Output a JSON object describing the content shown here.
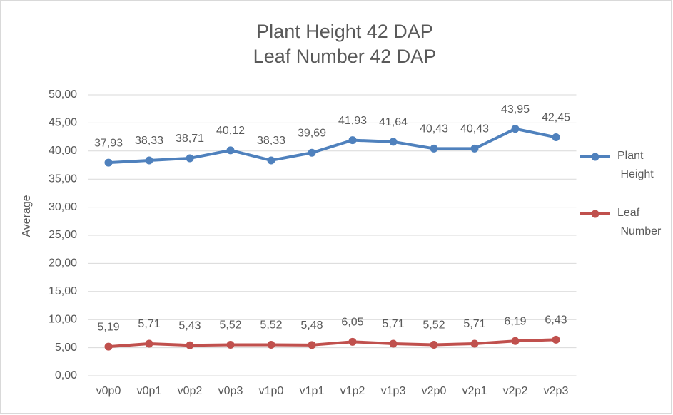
{
  "chart_data": {
    "type": "line",
    "title": [
      "Plant Height 42 DAP",
      "Leaf Number 42 DAP"
    ],
    "y_label": "Average",
    "categories": [
      "v0p0",
      "v0p1",
      "v0p2",
      "v0p3",
      "v1p0",
      "v1p1",
      "v1p2",
      "v1p3",
      "v2p0",
      "v2p1",
      "v2p2",
      "v2p3"
    ],
    "series": [
      {
        "name": "Plant Height",
        "color": "#4f81bd",
        "values": [
          37.93,
          38.33,
          38.71,
          40.12,
          38.33,
          39.69,
          41.93,
          41.64,
          40.43,
          40.43,
          43.95,
          42.45
        ],
        "value_labels": [
          "37,93",
          "38,33",
          "38,71",
          "40,12",
          "38,33",
          "39,69",
          "41,93",
          "41,64",
          "40,43",
          "40,43",
          "43,95",
          "42,45"
        ]
      },
      {
        "name": "Leaf Number",
        "color": "#c0504d",
        "values": [
          5.19,
          5.71,
          5.43,
          5.52,
          5.52,
          5.48,
          6.05,
          5.71,
          5.52,
          5.71,
          6.19,
          6.43
        ],
        "value_labels": [
          "5,19",
          "5,71",
          "5,43",
          "5,52",
          "5,52",
          "5,48",
          "6,05",
          "5,71",
          "5,52",
          "5,71",
          "6,19",
          "6,43"
        ]
      }
    ],
    "ylim": [
      0,
      50
    ],
    "yticks": [
      {
        "value": 0,
        "label": "0,00"
      },
      {
        "value": 5,
        "label": "5,00"
      },
      {
        "value": 10,
        "label": "10,00"
      },
      {
        "value": 15,
        "label": "15,00"
      },
      {
        "value": 20,
        "label": "20,00"
      },
      {
        "value": 25,
        "label": "25,00"
      },
      {
        "value": 30,
        "label": "30,00"
      },
      {
        "value": 35,
        "label": "35,00"
      },
      {
        "value": 40,
        "label": "40,00"
      },
      {
        "value": 45,
        "label": "45,00"
      },
      {
        "value": 50,
        "label": "50,00"
      }
    ],
    "grid": true,
    "legend": "right"
  }
}
